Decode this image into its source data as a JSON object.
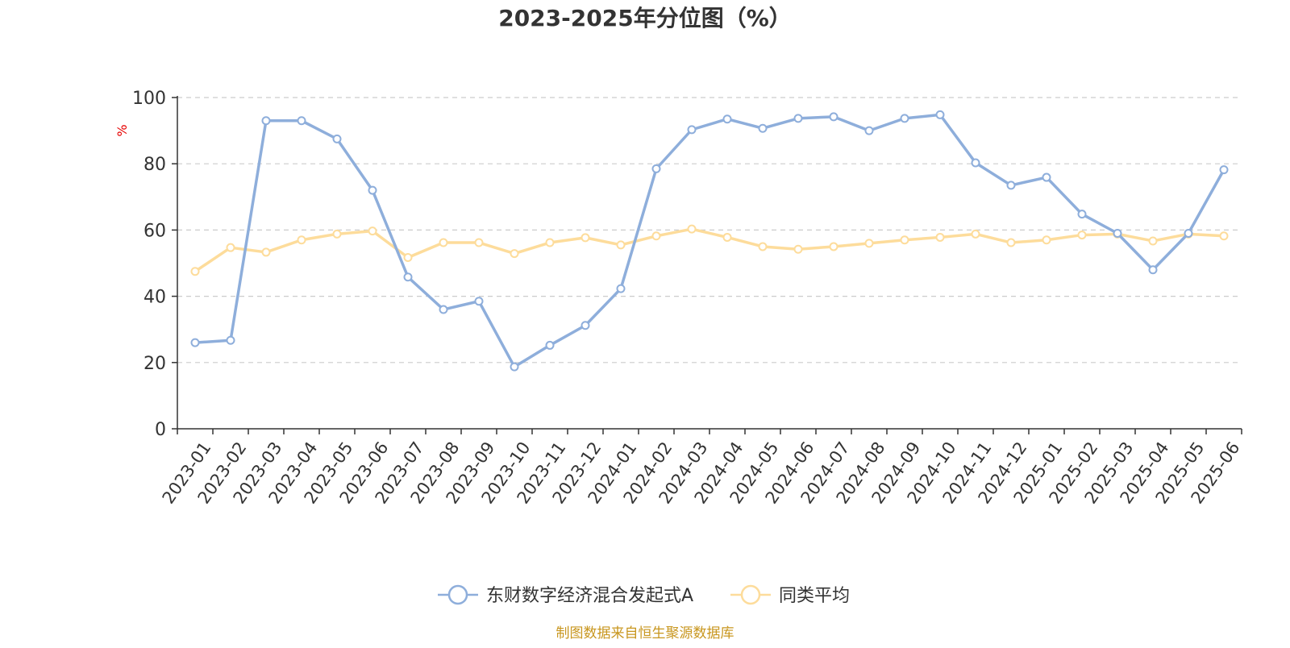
{
  "chart_data": {
    "type": "line",
    "title": "2023-2025年分位图（%）",
    "ylabel": "%",
    "ylim": [
      0,
      100
    ],
    "yticks": [
      0,
      20,
      40,
      60,
      80,
      100
    ],
    "grid": true,
    "legend_position": "bottom",
    "categories": [
      "2023-01",
      "2023-02",
      "2023-03",
      "2023-04",
      "2023-05",
      "2023-06",
      "2023-07",
      "2023-08",
      "2023-09",
      "2023-10",
      "2023-11",
      "2023-12",
      "2024-01",
      "2024-02",
      "2024-03",
      "2024-04",
      "2024-05",
      "2024-06",
      "2024-07",
      "2024-08",
      "2024-09",
      "2024-10",
      "2024-11",
      "2024-12",
      "2025-01",
      "2025-02",
      "2025-03",
      "2025-04",
      "2025-05",
      "2025-06"
    ],
    "series": [
      {
        "name": "东财数字经济混合发起式A",
        "color": "#8eaedb",
        "values": [
          26,
          26.7,
          93,
          93,
          87.5,
          72,
          45.8,
          36,
          38.5,
          18.7,
          25.2,
          31.2,
          42.3,
          78.5,
          90.3,
          93.5,
          90.7,
          93.7,
          94.2,
          90,
          93.7,
          94.8,
          80.3,
          73.5,
          75.9,
          64.8,
          59,
          48,
          59,
          78.2
        ]
      },
      {
        "name": "同类平均",
        "color": "#fddc9b",
        "values": [
          47.5,
          54.7,
          53.3,
          57,
          58.8,
          59.7,
          51.7,
          56.2,
          56.2,
          52.9,
          56.2,
          57.7,
          55.5,
          58.2,
          60.3,
          57.8,
          55,
          54.2,
          55,
          56,
          57,
          57.8,
          58.8,
          56.2,
          57,
          58.5,
          58.8,
          56.7,
          58.8,
          58.2
        ]
      }
    ]
  },
  "footer": {
    "source": "制图数据来自恒生聚源数据库"
  }
}
